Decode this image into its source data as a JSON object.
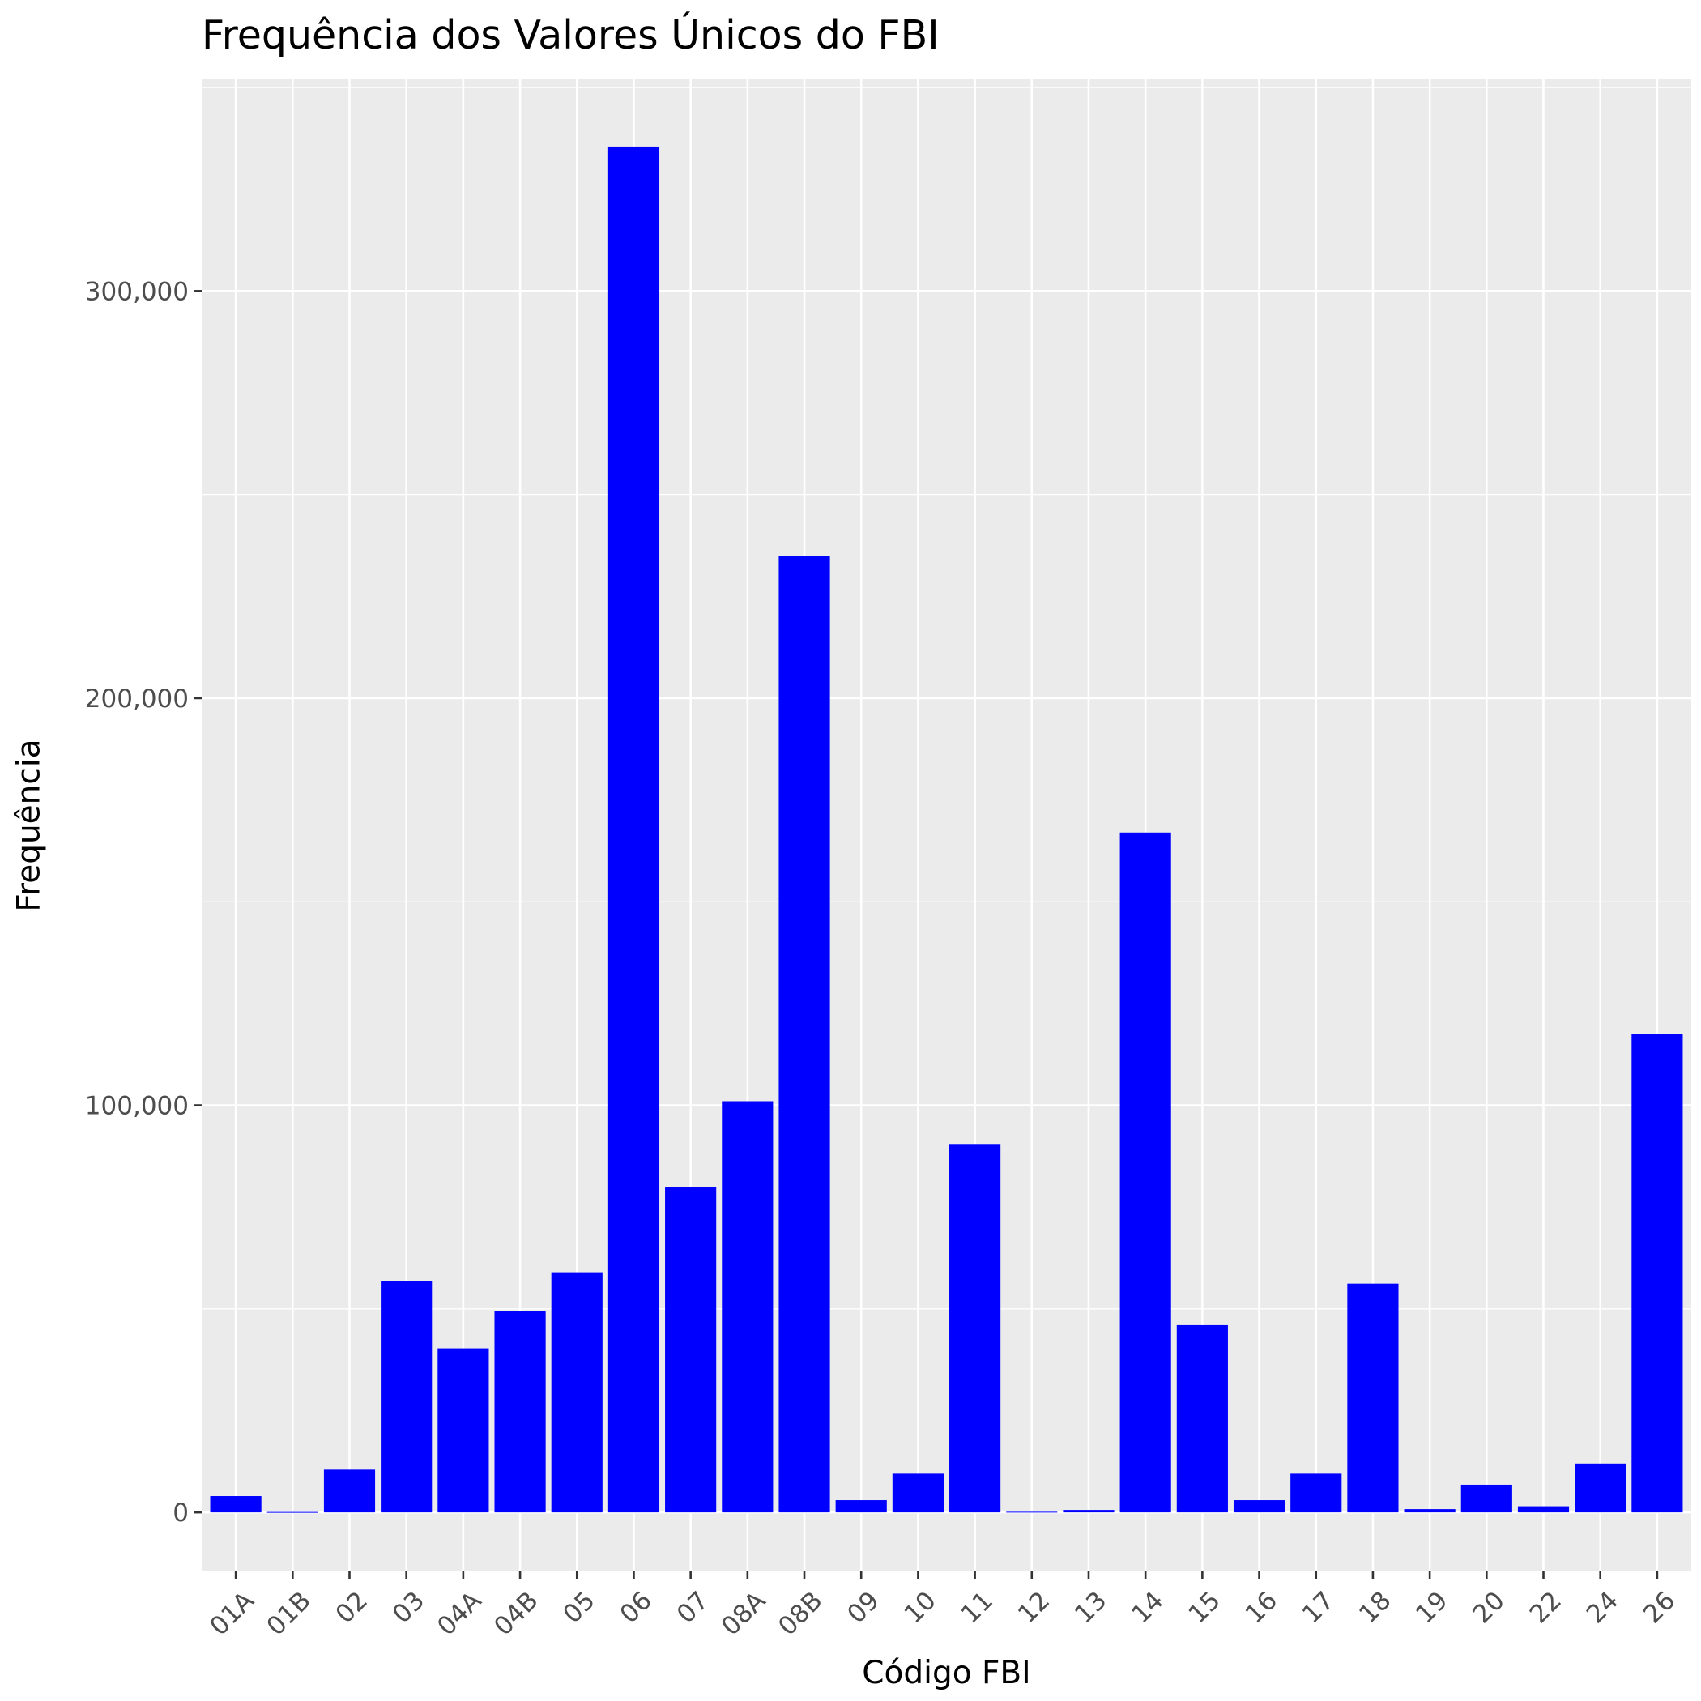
{
  "chart_data": {
    "type": "bar",
    "title": "Frequência dos Valores Únicos do FBI",
    "xlabel": "Código FBI",
    "ylabel": "Frequência",
    "categories": [
      "01A",
      "01B",
      "02",
      "03",
      "04A",
      "04B",
      "05",
      "06",
      "07",
      "08A",
      "08B",
      "09",
      "10",
      "11",
      "12",
      "13",
      "14",
      "15",
      "16",
      "17",
      "18",
      "19",
      "20",
      "22",
      "24",
      "26"
    ],
    "values": [
      4000,
      100,
      10500,
      56800,
      40300,
      49500,
      59000,
      335500,
      80000,
      101000,
      235000,
      3000,
      9500,
      90500,
      150,
      600,
      167000,
      46000,
      3000,
      9500,
      56200,
      800,
      6800,
      1500,
      12000,
      117500
    ],
    "ylim": [
      -14500,
      352000
    ],
    "yticks": [
      0,
      100000,
      200000,
      300000
    ],
    "ytick_labels": [
      "0",
      "100,000",
      "200,000",
      "300,000"
    ],
    "grid": true,
    "bar_color": "#0000ff",
    "panel_color": "#ebebeb"
  }
}
